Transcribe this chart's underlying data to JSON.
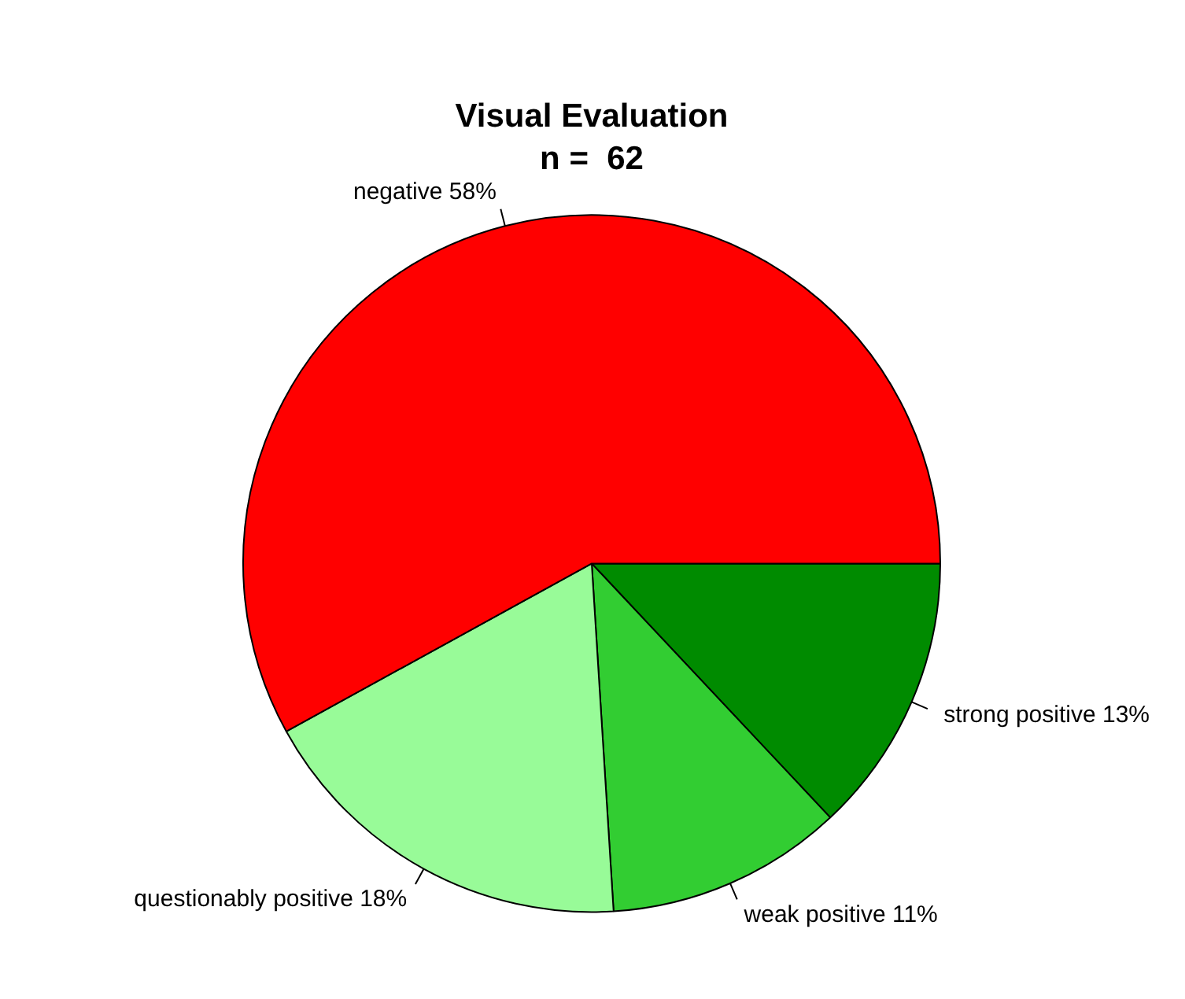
{
  "chart_data": {
    "type": "pie",
    "title": "Visual Evaluation",
    "subtitle": "n =  62",
    "categories": [
      "negative",
      "questionably positive",
      "weak positive",
      "strong positive"
    ],
    "values": [
      58,
      18,
      11,
      13
    ],
    "value_labels": [
      "58%",
      "18%",
      "11%",
      "13%"
    ],
    "colors": [
      "#ff0000",
      "#98fb98",
      "#32cd32",
      "#008b00"
    ],
    "legend": false
  }
}
